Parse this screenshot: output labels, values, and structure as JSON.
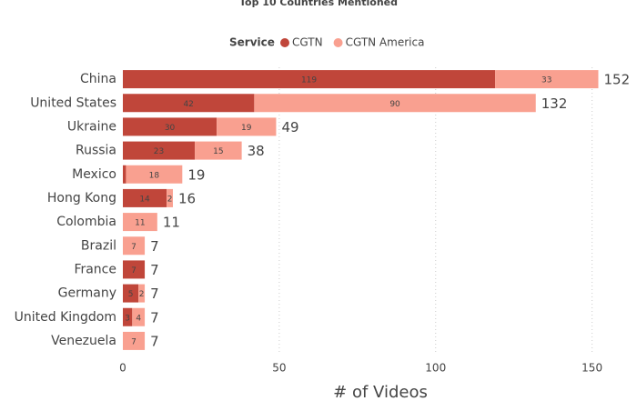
{
  "chart_data": {
    "type": "stacked-bar-horizontal",
    "title": "Top 10 Countries Mentioned",
    "legend_title": "Service",
    "x_label": "# of Videos",
    "categories": [
      "China",
      "United States",
      "Ukraine",
      "Russia",
      "Mexico",
      "Hong Kong",
      "Colombia",
      "Brazil",
      "France",
      "Germany",
      "United Kingdom",
      "Venezuela"
    ],
    "series": [
      {
        "name": "CGTN",
        "color": "#c0463a",
        "values": [
          119,
          42,
          30,
          23,
          1,
          14,
          0,
          0,
          7,
          5,
          3,
          0
        ]
      },
      {
        "name": "CGTN America",
        "color": "#f9a090",
        "values": [
          33,
          90,
          19,
          15,
          18,
          2,
          11,
          7,
          0,
          2,
          4,
          7
        ]
      }
    ],
    "totals": [
      152,
      132,
      49,
      38,
      19,
      16,
      11,
      7,
      7,
      7,
      7,
      7
    ],
    "xlim": [
      0,
      160
    ],
    "xticks": [
      0,
      50,
      100,
      150
    ],
    "grid": true
  }
}
